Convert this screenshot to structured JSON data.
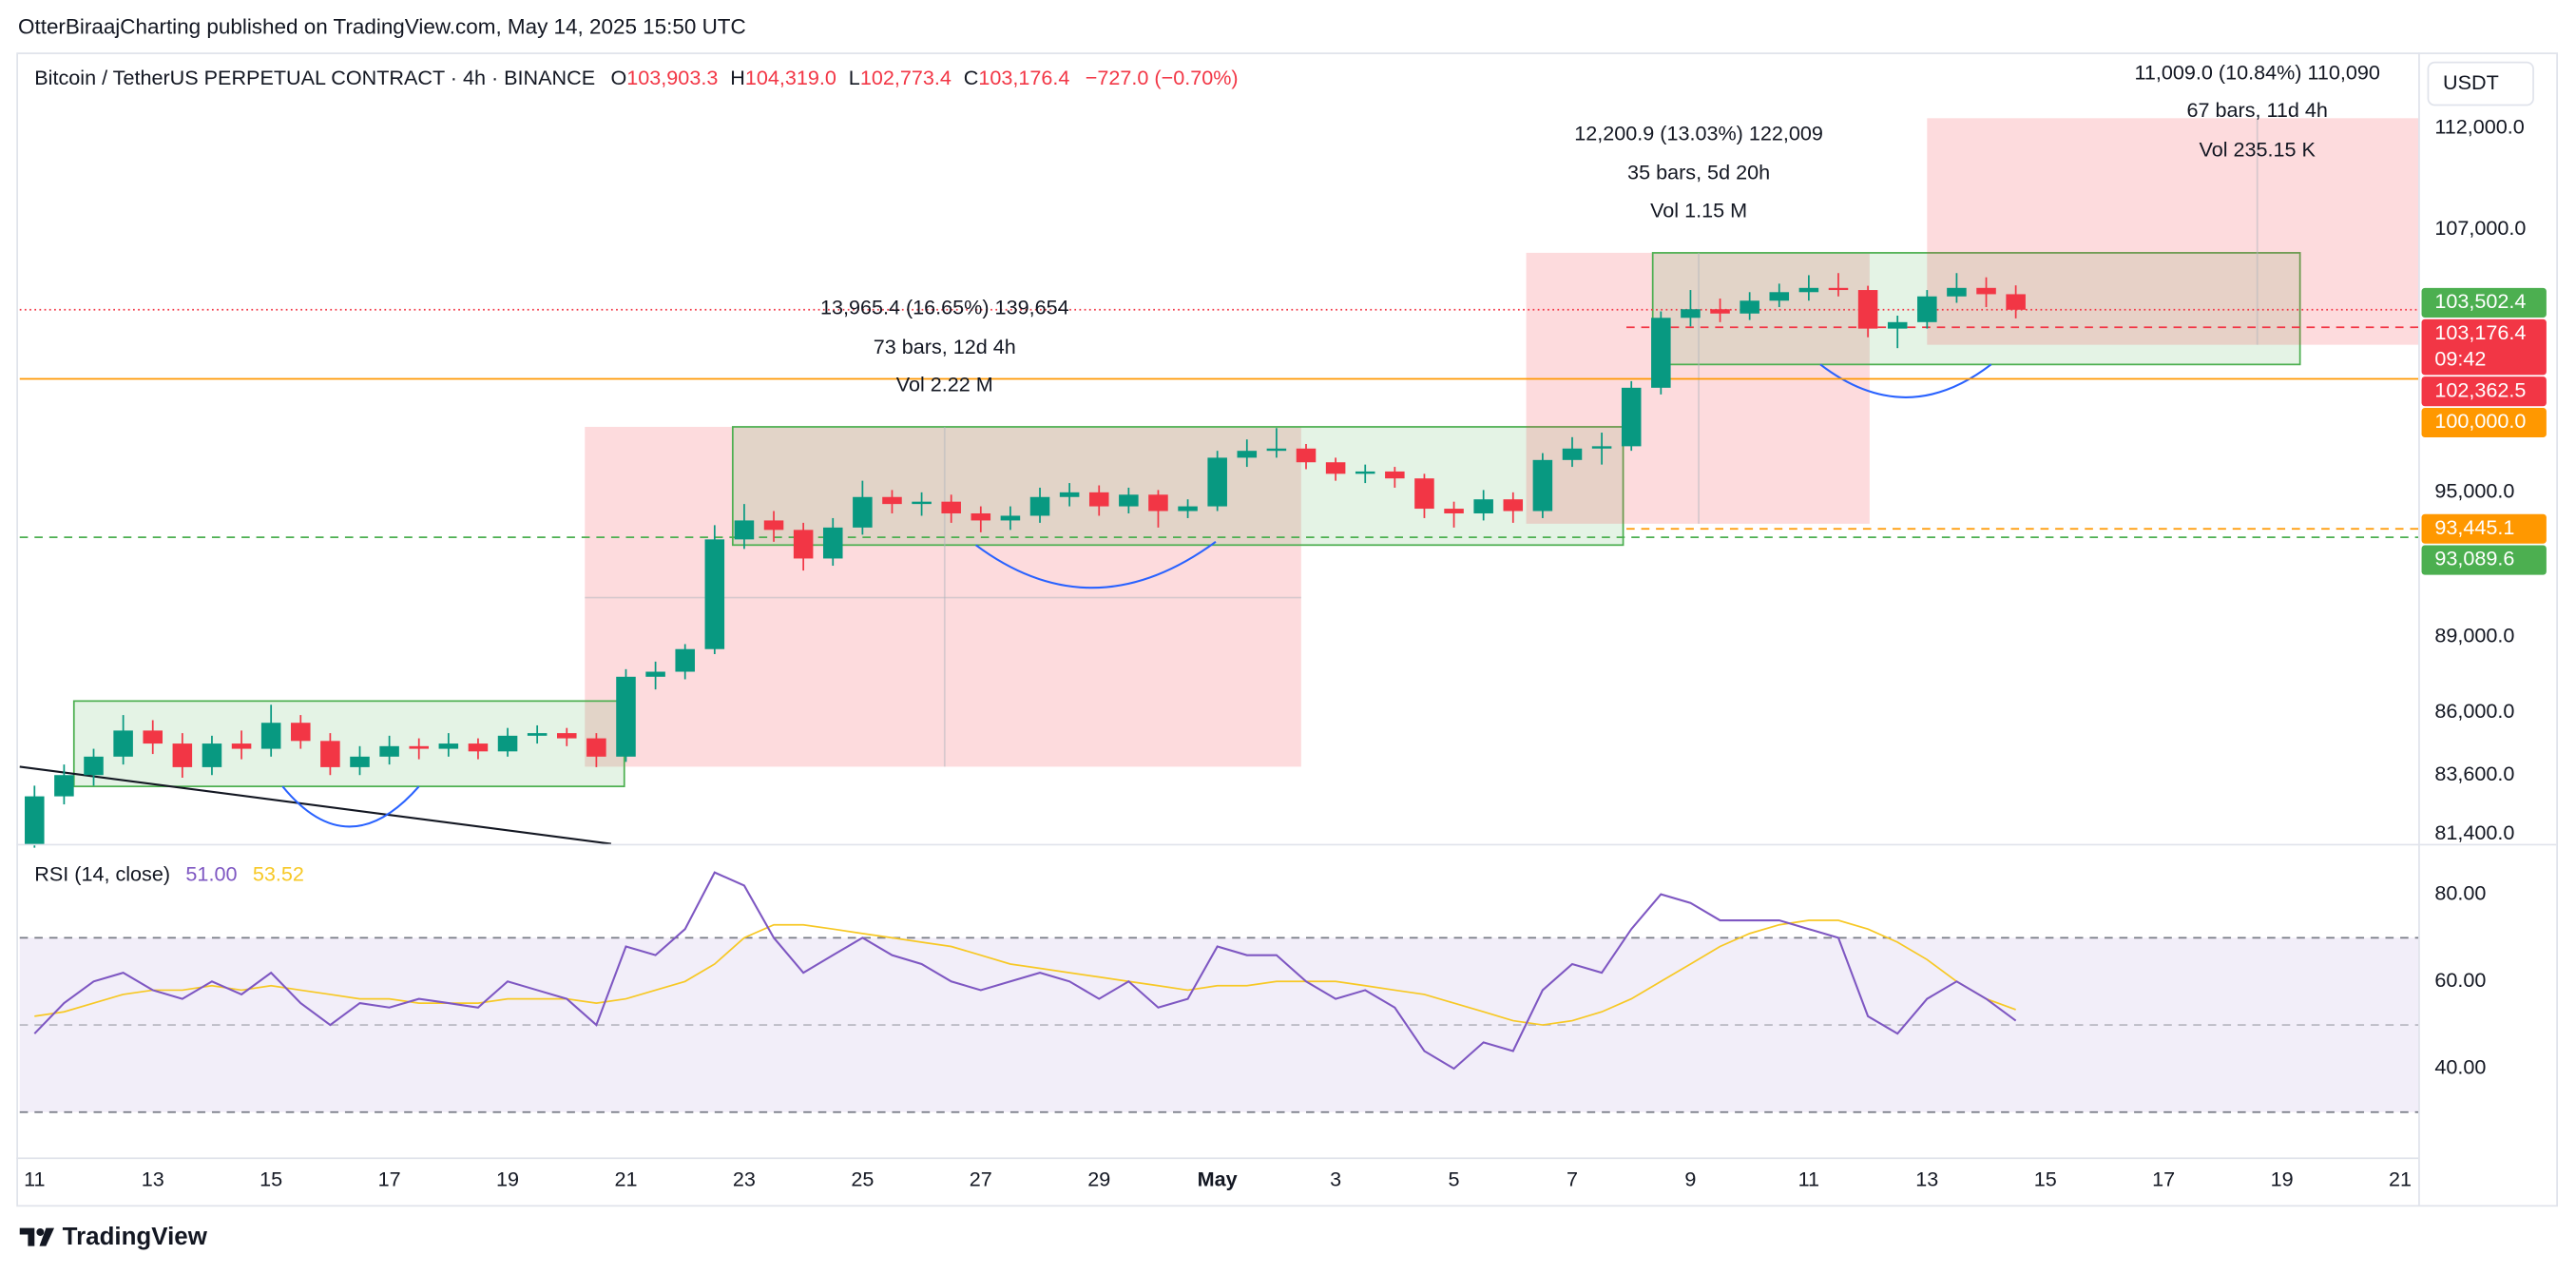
{
  "header": {
    "publisher": "OtterBiraajCharting published on TradingView.com, May 14, 2025 15:50 UTC"
  },
  "footer": {
    "brand": "TradingView"
  },
  "chart_data": {
    "type": "candlestick",
    "title": "Bitcoin / TetherUS PERPETUAL CONTRACT · 4h · BINANCE",
    "ohlc_legend": {
      "o_label": "O",
      "o": "103,903.3",
      "h_label": "H",
      "h": "104,319.0",
      "l_label": "L",
      "l": "102,773.4",
      "c_label": "C",
      "c": "103,176.4",
      "change": "−727.0 (−0.70%)"
    },
    "currency": "USDT",
    "up_color": "#089981",
    "down_color": "#f23645",
    "log_scale": true,
    "grid": false,
    "ylim": [
      81040,
      115900
    ],
    "yticks": [
      {
        "value": 81400,
        "label": "81,400.0"
      },
      {
        "value": 83600,
        "label": "83,600.0"
      },
      {
        "value": 86000,
        "label": "86,000.0"
      },
      {
        "value": 89000,
        "label": "89,000.0"
      },
      {
        "value": 95000,
        "label": "95,000.0"
      },
      {
        "value": 107000,
        "label": "107,000.0"
      },
      {
        "value": 112000,
        "label": "112,000.0"
      }
    ],
    "xlim": [
      "2025-04-10T18:00",
      "2025-05-21T07:20"
    ],
    "xticks": [
      {
        "value": "2025-04-11T00:00",
        "label": "11"
      },
      {
        "value": "2025-04-13T00:00",
        "label": "13"
      },
      {
        "value": "2025-04-15T00:00",
        "label": "15"
      },
      {
        "value": "2025-04-17T00:00",
        "label": "17"
      },
      {
        "value": "2025-04-19T00:00",
        "label": "19"
      },
      {
        "value": "2025-04-21T00:00",
        "label": "21"
      },
      {
        "value": "2025-04-23T00:00",
        "label": "23"
      },
      {
        "value": "2025-04-25T00:00",
        "label": "25"
      },
      {
        "value": "2025-04-27T00:00",
        "label": "27"
      },
      {
        "value": "2025-04-29T00:00",
        "label": "29"
      },
      {
        "value": "2025-05-01T00:00",
        "label": "May"
      },
      {
        "value": "2025-05-03T00:00",
        "label": "3"
      },
      {
        "value": "2025-05-05T00:00",
        "label": "5"
      },
      {
        "value": "2025-05-07T00:00",
        "label": "7"
      },
      {
        "value": "2025-05-09T00:00",
        "label": "9"
      },
      {
        "value": "2025-05-11T00:00",
        "label": "11"
      },
      {
        "value": "2025-05-13T00:00",
        "label": "13"
      },
      {
        "value": "2025-05-15T00:00",
        "label": "15"
      },
      {
        "value": "2025-05-17T00:00",
        "label": "17"
      },
      {
        "value": "2025-05-19T00:00",
        "label": "19"
      },
      {
        "value": "2025-05-21T00:00",
        "label": "21"
      }
    ],
    "x": [
      "2025-04-11T00:00",
      "2025-04-11T12:00",
      "2025-04-12T00:00",
      "2025-04-12T12:00",
      "2025-04-13T00:00",
      "2025-04-13T12:00",
      "2025-04-14T00:00",
      "2025-04-14T12:00",
      "2025-04-15T00:00",
      "2025-04-15T12:00",
      "2025-04-16T00:00",
      "2025-04-16T12:00",
      "2025-04-17T00:00",
      "2025-04-17T12:00",
      "2025-04-18T00:00",
      "2025-04-18T12:00",
      "2025-04-19T00:00",
      "2025-04-19T12:00",
      "2025-04-20T00:00",
      "2025-04-20T12:00",
      "2025-04-21T00:00",
      "2025-04-21T12:00",
      "2025-04-22T00:00",
      "2025-04-22T12:00",
      "2025-04-23T00:00",
      "2025-04-23T12:00",
      "2025-04-24T00:00",
      "2025-04-24T12:00",
      "2025-04-25T00:00",
      "2025-04-25T12:00",
      "2025-04-26T00:00",
      "2025-04-26T12:00",
      "2025-04-27T00:00",
      "2025-04-27T12:00",
      "2025-04-28T00:00",
      "2025-04-28T12:00",
      "2025-04-29T00:00",
      "2025-04-29T12:00",
      "2025-04-30T00:00",
      "2025-04-30T12:00",
      "2025-05-01T00:00",
      "2025-05-01T12:00",
      "2025-05-02T00:00",
      "2025-05-02T12:00",
      "2025-05-03T00:00",
      "2025-05-03T12:00",
      "2025-05-04T00:00",
      "2025-05-04T12:00",
      "2025-05-05T00:00",
      "2025-05-05T12:00",
      "2025-05-06T00:00",
      "2025-05-06T12:00",
      "2025-05-07T00:00",
      "2025-05-07T12:00",
      "2025-05-08T00:00",
      "2025-05-08T12:00",
      "2025-05-09T00:00",
      "2025-05-09T12:00",
      "2025-05-10T00:00",
      "2025-05-10T12:00",
      "2025-05-11T00:00",
      "2025-05-11T12:00",
      "2025-05-12T00:00",
      "2025-05-12T12:00",
      "2025-05-13T00:00",
      "2025-05-13T12:00",
      "2025-05-14T00:00",
      "2025-05-14T12:00"
    ],
    "open": [
      81000,
      82800,
      83600,
      84300,
      85300,
      84800,
      83900,
      84800,
      84600,
      85600,
      84900,
      83900,
      84300,
      84700,
      84600,
      84800,
      84500,
      85100,
      85200,
      85000,
      84300,
      87400,
      87600,
      88500,
      93000,
      93800,
      93400,
      92200,
      93500,
      94800,
      94500,
      94600,
      94100,
      93800,
      94000,
      94800,
      95000,
      94400,
      94900,
      94200,
      94400,
      96500,
      96800,
      96900,
      96300,
      95800,
      95900,
      95600,
      94300,
      94100,
      94700,
      94200,
      96400,
      96900,
      97000,
      99600,
      102800,
      103200,
      103000,
      103600,
      104000,
      104200,
      104100,
      102300,
      102600,
      103800,
      104200,
      103903.3
    ],
    "high": [
      83200,
      84000,
      84600,
      85900,
      85700,
      85200,
      85100,
      85300,
      86300,
      85900,
      85200,
      84700,
      85100,
      85000,
      85200,
      85000,
      85400,
      85500,
      85400,
      85200,
      87700,
      88000,
      88700,
      93600,
      94500,
      94200,
      93700,
      93900,
      95500,
      95100,
      95000,
      94900,
      94400,
      94400,
      95200,
      95400,
      95300,
      95200,
      95100,
      94700,
      96800,
      97300,
      97800,
      97100,
      96500,
      96200,
      96100,
      95800,
      94600,
      95100,
      95000,
      96700,
      97400,
      97600,
      99900,
      103100,
      104100,
      103700,
      104000,
      104400,
      104800,
      104900,
      104300,
      102900,
      104100,
      104900,
      104700,
      104319
    ],
    "low": [
      80900,
      82500,
      83200,
      84000,
      84400,
      83500,
      83600,
      84200,
      84300,
      84600,
      83600,
      83600,
      84000,
      84200,
      84300,
      84200,
      84300,
      84800,
      84700,
      83900,
      84100,
      86900,
      87300,
      88300,
      92600,
      92900,
      91700,
      91900,
      93200,
      94100,
      94000,
      93700,
      93300,
      93400,
      93700,
      94400,
      94000,
      94100,
      93500,
      93900,
      94200,
      96100,
      96500,
      96000,
      95500,
      95400,
      95200,
      93900,
      93500,
      93800,
      93700,
      93900,
      96100,
      96200,
      96800,
      99300,
      102400,
      102600,
      102700,
      103300,
      103600,
      103800,
      101900,
      101400,
      102300,
      103500,
      103300,
      102773.4
    ],
    "close": [
      82800,
      83600,
      84300,
      85300,
      84800,
      83900,
      84800,
      84600,
      85600,
      84900,
      83900,
      84300,
      84700,
      84600,
      84800,
      84500,
      85100,
      85200,
      85000,
      84300,
      87400,
      87600,
      88500,
      93000,
      93800,
      93400,
      92200,
      93500,
      94800,
      94500,
      94600,
      94100,
      93800,
      94000,
      94800,
      95000,
      94400,
      94900,
      94200,
      94400,
      96500,
      96800,
      96900,
      96300,
      95800,
      95900,
      95600,
      94300,
      94100,
      94700,
      94200,
      96400,
      96900,
      97000,
      99600,
      102800,
      103200,
      103000,
      103600,
      104000,
      104200,
      104100,
      102300,
      102600,
      103800,
      104200,
      103903.3,
      103176.4
    ],
    "price_labels": [
      {
        "value": 103502.4,
        "label": "103,502.4",
        "color": "#4caf50",
        "line": "none"
      },
      {
        "value": 103176.4,
        "label": "103,176.4",
        "color": "#f23645",
        "line": "dotted",
        "countdown": "09:42"
      },
      {
        "value": 102362.5,
        "label": "102,362.5",
        "color": "#f23645",
        "line": "dashed-short"
      },
      {
        "value": 100000,
        "label": "100,000.0",
        "color": "#ff9800",
        "line": "solid"
      },
      {
        "value": 93445.1,
        "label": "93,445.1",
        "color": "#ff9800",
        "line": "dashed-short"
      },
      {
        "value": 93089.6,
        "label": "93,089.6",
        "color": "#4caf50",
        "line": "dashed"
      }
    ],
    "measurements": [
      {
        "lines": [
          "13,965.4 (16.65%) 139,654",
          "73 bars, 12d 4h",
          "Vol 2.22 M"
        ]
      },
      {
        "lines": [
          "12,200.9 (13.03%) 122,009",
          "35 bars, 5d 20h",
          "Vol 1.15 M"
        ]
      },
      {
        "lines": [
          "11,009.0 (10.84%) 110,090",
          "67 bars, 11d 4h",
          "Vol 235.15 K"
        ]
      }
    ],
    "rsi": {
      "title": "RSI (14, close)",
      "value_label": "51.00",
      "ma_label": "53.52",
      "color": "#7e57c2",
      "ma_color": "#f7c825",
      "ylim": [
        19.6,
        89.3
      ],
      "yticks": [
        {
          "value": 40,
          "label": "40.00"
        },
        {
          "value": 60,
          "label": "60.00"
        },
        {
          "value": 80,
          "label": "80.00"
        }
      ],
      "band_levels": [
        30,
        70
      ],
      "mid_level": 50,
      "values": [
        48,
        55,
        60,
        62,
        58,
        56,
        60,
        57,
        62,
        55,
        50,
        55,
        54,
        56,
        55,
        54,
        60,
        58,
        56,
        50,
        68,
        66,
        72,
        85,
        82,
        70,
        62,
        66,
        70,
        66,
        64,
        60,
        58,
        60,
        62,
        60,
        56,
        60,
        54,
        56,
        68,
        66,
        66,
        60,
        56,
        58,
        54,
        44,
        40,
        46,
        44,
        58,
        64,
        62,
        72,
        80,
        78,
        74,
        74,
        74,
        72,
        70,
        52,
        48,
        56,
        60,
        56,
        51
      ],
      "ma": [
        52,
        53,
        55,
        57,
        58,
        58,
        59,
        58,
        59,
        58,
        57,
        56,
        56,
        55,
        55,
        55,
        56,
        56,
        56,
        55,
        56,
        58,
        60,
        64,
        70,
        73,
        73,
        72,
        71,
        70,
        69,
        68,
        66,
        64,
        63,
        62,
        61,
        60,
        59,
        58,
        59,
        59,
        60,
        60,
        60,
        59,
        58,
        57,
        55,
        53,
        51,
        50,
        51,
        53,
        56,
        60,
        64,
        68,
        71,
        73,
        74,
        74,
        72,
        69,
        65,
        60,
        56,
        53.52
      ]
    }
  }
}
